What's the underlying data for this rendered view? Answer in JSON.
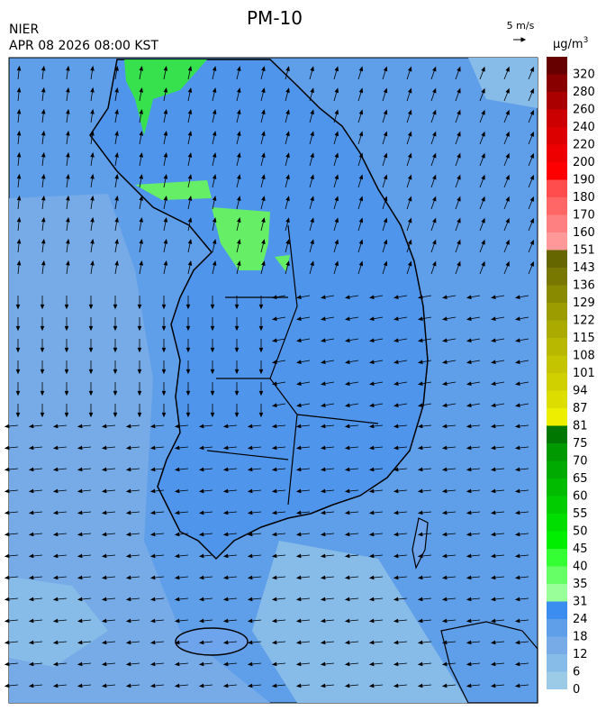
{
  "header": {
    "title": "PM-10",
    "agency": "NIER",
    "datetime": "APR 08 2026 08:00 KST",
    "wind_scale": "5 m/s"
  },
  "legend": {
    "unit": "μg/m",
    "unit_sup": "3",
    "levels": [
      0,
      6,
      12,
      18,
      24,
      31,
      35,
      40,
      45,
      50,
      55,
      60,
      65,
      70,
      75,
      81,
      87,
      94,
      101,
      108,
      115,
      122,
      129,
      136,
      143,
      151,
      160,
      170,
      180,
      190,
      200,
      220,
      240,
      260,
      280,
      320
    ],
    "colors": [
      "#9ccbe8",
      "#87bbe8",
      "#76abe8",
      "#5f9ee8",
      "#3b8ef0",
      "#99ff99",
      "#66ff66",
      "#33ff33",
      "#00ee00",
      "#00dd00",
      "#00cc00",
      "#00bb00",
      "#00aa00",
      "#009900",
      "#007700",
      "#eeee00",
      "#dddd00",
      "#d0d000",
      "#c4c400",
      "#b8b800",
      "#aaaa00",
      "#9c9c00",
      "#8a8a00",
      "#787800",
      "#666600",
      "#ff9999",
      "#ff8080",
      "#ff6666",
      "#ff4d4d",
      "#ff0000",
      "#ee0000",
      "#dd0000",
      "#cc0000",
      "#aa0000",
      "#880000",
      "#660000"
    ]
  }
}
